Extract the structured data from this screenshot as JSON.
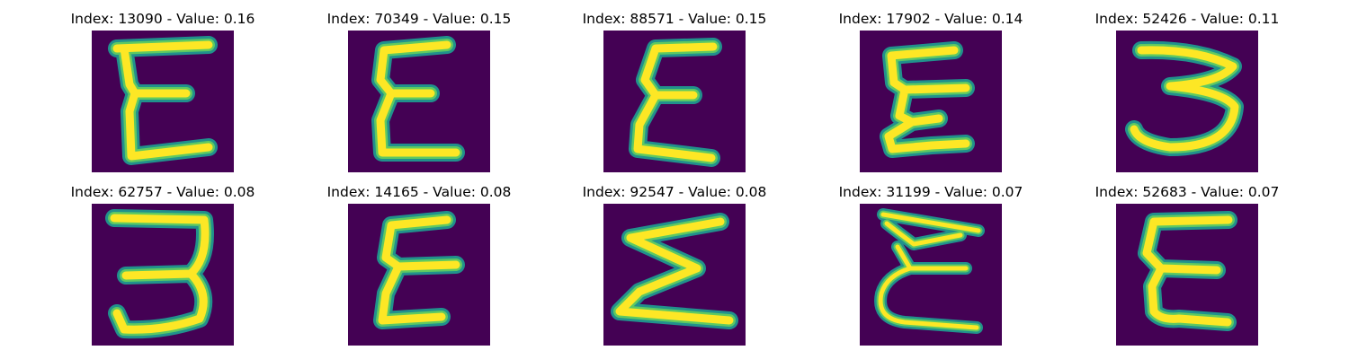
{
  "colors": {
    "background": "#440154",
    "stroke_outer": "#21918c",
    "stroke_mid": "#5ec962",
    "stroke_core": "#fde725"
  },
  "panels": [
    {
      "title": "Index: 13090 - Value: 0.16",
      "glyph": "E-shaped handwritten character"
    },
    {
      "title": "Index: 70349 - Value: 0.15",
      "glyph": "E-shaped handwritten character"
    },
    {
      "title": "Index: 88571 - Value: 0.15",
      "glyph": "E-shaped handwritten character"
    },
    {
      "title": "Index: 17902 - Value: 0.14",
      "glyph": "E-shaped handwritten character"
    },
    {
      "title": "Index: 52426 - Value: 0.11",
      "glyph": "3-shaped handwritten character"
    },
    {
      "title": "Index: 62757 - Value: 0.08",
      "glyph": "3-shaped handwritten character"
    },
    {
      "title": "Index: 14165 - Value: 0.08",
      "glyph": "E-shaped handwritten character"
    },
    {
      "title": "Index: 92547 - Value: 0.08",
      "glyph": "Sigma-shaped handwritten character"
    },
    {
      "title": "Index: 31199 - Value: 0.07",
      "glyph": "E-shaped handwritten character"
    },
    {
      "title": "Index: 52683 - Value: 0.07",
      "glyph": "E-shaped handwritten character"
    }
  ]
}
